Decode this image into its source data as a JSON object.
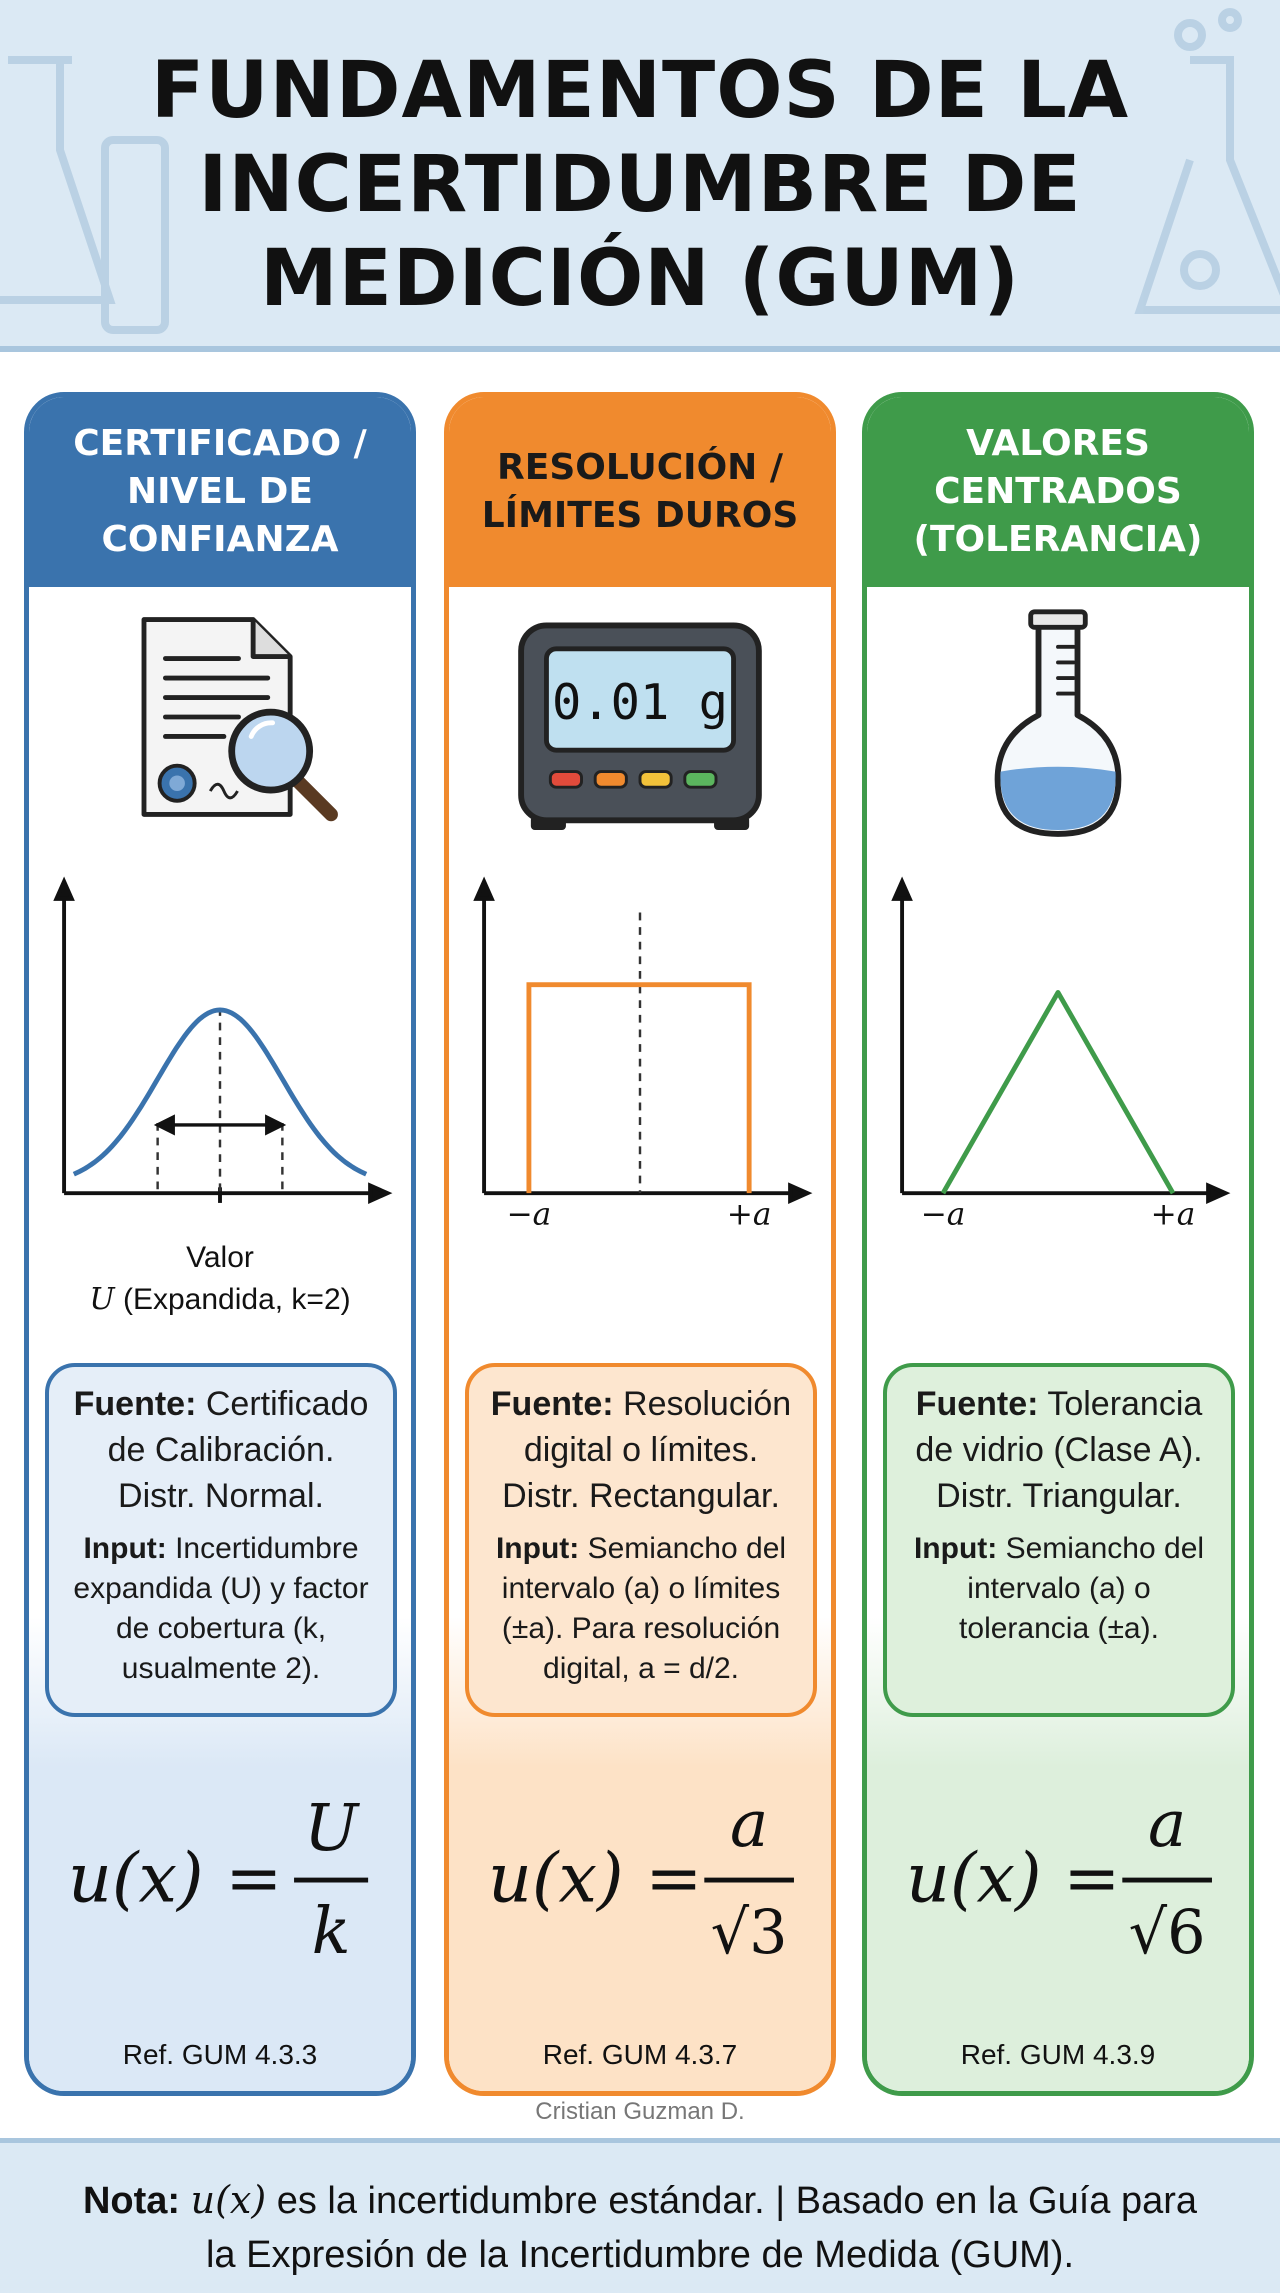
{
  "title_lines": [
    "FUNDAMENTOS DE LA",
    "INCERTIDUMBRE DE",
    "MEDICIÓN (GUM)"
  ],
  "panels": [
    {
      "head": [
        "CERTIFICADO /",
        "NIVEL DE",
        "CONFIANZA"
      ],
      "icon": "certificate-magnifier-icon",
      "distribution": "normal",
      "xlabel_1": "Valor",
      "xlabel_2_var": "U",
      "xlabel_2_rest": " (Expandida, k=2)",
      "source_label": "Fuente:",
      "source_lines": [
        " Certificado",
        "de Calibración.",
        "Distr. Normal."
      ],
      "input_label": "Input:",
      "input_lines": [
        " Incertidumbre",
        "expandida (U) y factor",
        "de cobertura (k,",
        "usualmente 2)."
      ],
      "formula_lhs": "u(x) =",
      "formula_num": "U",
      "formula_den": "k",
      "ref": "Ref. GUM 4.3.3",
      "color": "#3a73ad"
    },
    {
      "head": [
        "RESOLUCIÓN /",
        "LÍMITES DUROS"
      ],
      "icon": "digital-scale-icon",
      "display": "0.01 g",
      "distribution": "rectangular",
      "tick_left": "−a",
      "tick_right": "+a",
      "source_label": "Fuente:",
      "source_lines": [
        " Resolución",
        "digital o límites.",
        "Distr. Rectangular."
      ],
      "input_label": "Input:",
      "input_lines": [
        " Semiancho del",
        "intervalo (a) o límites",
        "(±a). Para resolución",
        "digital, a = d/2."
      ],
      "formula_lhs": "u(x) =",
      "formula_num": "a",
      "formula_den": "√3",
      "ref": "Ref. GUM 4.3.7",
      "color": "#f08a2e"
    },
    {
      "head": [
        "VALORES",
        "CENTRADOS",
        "(TOLERANCIA)"
      ],
      "icon": "volumetric-flask-icon",
      "distribution": "triangular",
      "tick_left": "−a",
      "tick_right": "+a",
      "source_label": "Fuente:",
      "source_lines": [
        " Tolerancia",
        "de vidrio (Clase A).",
        "Distr. Triangular."
      ],
      "input_label": "Input:",
      "input_lines": [
        " Semiancho del",
        "intervalo (a) o",
        "tolerancia (±a)."
      ],
      "formula_lhs": "u(x) =",
      "formula_num": "a",
      "formula_den": "√6",
      "ref": "Ref. GUM 4.3.9",
      "color": "#3f9b4a"
    }
  ],
  "credit": "Cristian Guzman D.",
  "footer": {
    "note_label": "Nota:",
    "note_var": "u(x)",
    "line_1_rest": " es la incertidumbre estándar. | Basado en la Guía para",
    "line_2": "la Expresión de la Incertidumbre de Medida (GUM)."
  }
}
